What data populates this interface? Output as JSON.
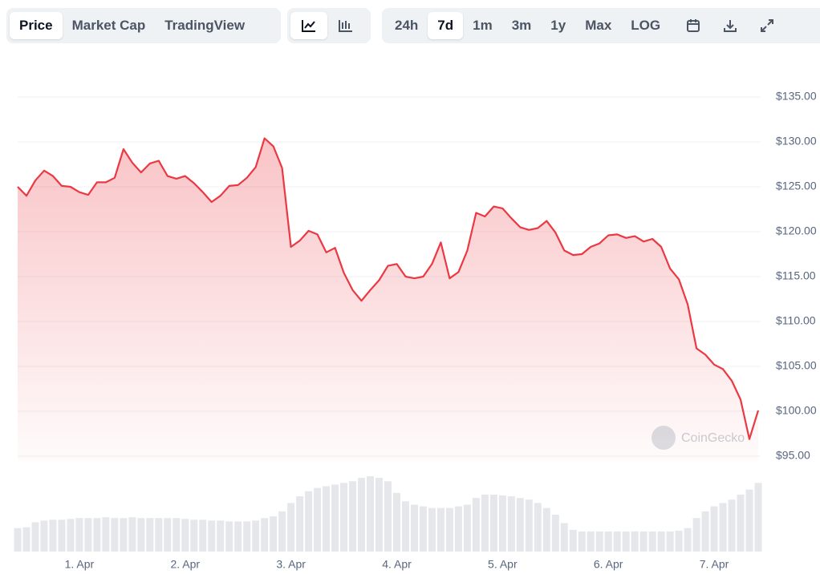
{
  "toolbar": {
    "views": [
      {
        "label": "Price",
        "active": true
      },
      {
        "label": "Market Cap",
        "active": false
      },
      {
        "label": "TradingView",
        "active": false
      }
    ],
    "ranges": [
      {
        "label": "24h",
        "active": false
      },
      {
        "label": "7d",
        "active": true
      },
      {
        "label": "1m",
        "active": false
      },
      {
        "label": "3m",
        "active": false
      },
      {
        "label": "1y",
        "active": false
      },
      {
        "label": "Max",
        "active": false
      },
      {
        "label": "LOG",
        "active": false
      }
    ]
  },
  "chart_data": {
    "type": "line",
    "watermark": "CoinGecko",
    "color": "#ea3943",
    "grid": true,
    "categories": [
      null,
      null,
      null,
      null,
      null,
      null,
      null,
      "1. Apr",
      null,
      null,
      null,
      null,
      null,
      null,
      null,
      null,
      null,
      null,
      null,
      "2. Apr",
      null,
      null,
      null,
      null,
      null,
      null,
      null,
      null,
      null,
      null,
      null,
      "3. Apr",
      null,
      null,
      null,
      null,
      null,
      null,
      null,
      null,
      null,
      null,
      null,
      "4. Apr",
      null,
      null,
      null,
      null,
      null,
      null,
      null,
      null,
      null,
      null,
      null,
      "5. Apr",
      null,
      null,
      null,
      null,
      null,
      null,
      null,
      null,
      null,
      null,
      null,
      "6. Apr",
      null,
      null,
      null,
      null,
      null,
      null,
      null,
      null,
      null,
      null,
      null,
      "7. Apr",
      null,
      null,
      null,
      null,
      null
    ],
    "values": [
      125.0,
      124.0,
      125.7,
      126.8,
      126.2,
      125.1,
      125.0,
      124.4,
      124.1,
      125.5,
      125.5,
      126.0,
      129.2,
      127.7,
      126.6,
      127.6,
      127.9,
      126.2,
      125.9,
      126.2,
      125.4,
      124.4,
      123.3,
      124.0,
      125.1,
      125.2,
      126.0,
      127.2,
      130.4,
      129.5,
      127.1,
      118.3,
      119.0,
      120.1,
      119.7,
      117.7,
      118.2,
      115.4,
      113.5,
      112.3,
      113.5,
      114.6,
      116.2,
      116.4,
      115.0,
      114.8,
      115.0,
      116.4,
      118.8,
      114.8,
      115.5,
      117.9,
      122.1,
      121.7,
      122.8,
      122.6,
      121.5,
      120.5,
      120.2,
      120.4,
      121.2,
      119.9,
      117.9,
      117.4,
      117.5,
      118.3,
      118.7,
      119.6,
      119.7,
      119.3,
      119.5,
      118.9,
      119.2,
      118.3,
      115.9,
      114.7,
      111.9,
      107.0,
      106.3,
      105.2,
      104.7,
      103.4,
      101.3,
      96.9,
      100.1
    ],
    "ylim": [
      95,
      135
    ],
    "yticks": [
      {
        "value": 95,
        "label": "$95.00"
      },
      {
        "value": 100,
        "label": "$100.00"
      },
      {
        "value": 105,
        "label": "$105.00"
      },
      {
        "value": 110,
        "label": "$110.00"
      },
      {
        "value": 115,
        "label": "$115.00"
      },
      {
        "value": 120,
        "label": "$120.00"
      },
      {
        "value": 125,
        "label": "$125.00"
      },
      {
        "value": 130,
        "label": "$130.00"
      },
      {
        "value": 135,
        "label": "$135.00"
      }
    ],
    "volume": {
      "color": "#e5e7eb",
      "values": [
        28,
        29,
        35,
        37,
        38,
        38,
        39,
        40,
        40,
        40,
        41,
        40,
        40,
        41,
        40,
        40,
        40,
        40,
        40,
        39,
        38,
        38,
        37,
        37,
        36,
        36,
        36,
        37,
        40,
        42,
        48,
        58,
        66,
        72,
        76,
        78,
        80,
        82,
        84,
        88,
        90,
        88,
        84,
        70,
        60,
        56,
        54,
        52,
        52,
        52,
        54,
        56,
        64,
        68,
        68,
        67,
        66,
        64,
        62,
        58,
        52,
        44,
        34,
        26,
        24,
        24,
        24,
        24,
        24,
        24,
        24,
        24,
        24,
        24,
        24,
        25,
        28,
        40,
        48,
        54,
        58,
        62,
        68,
        74,
        82
      ]
    }
  }
}
